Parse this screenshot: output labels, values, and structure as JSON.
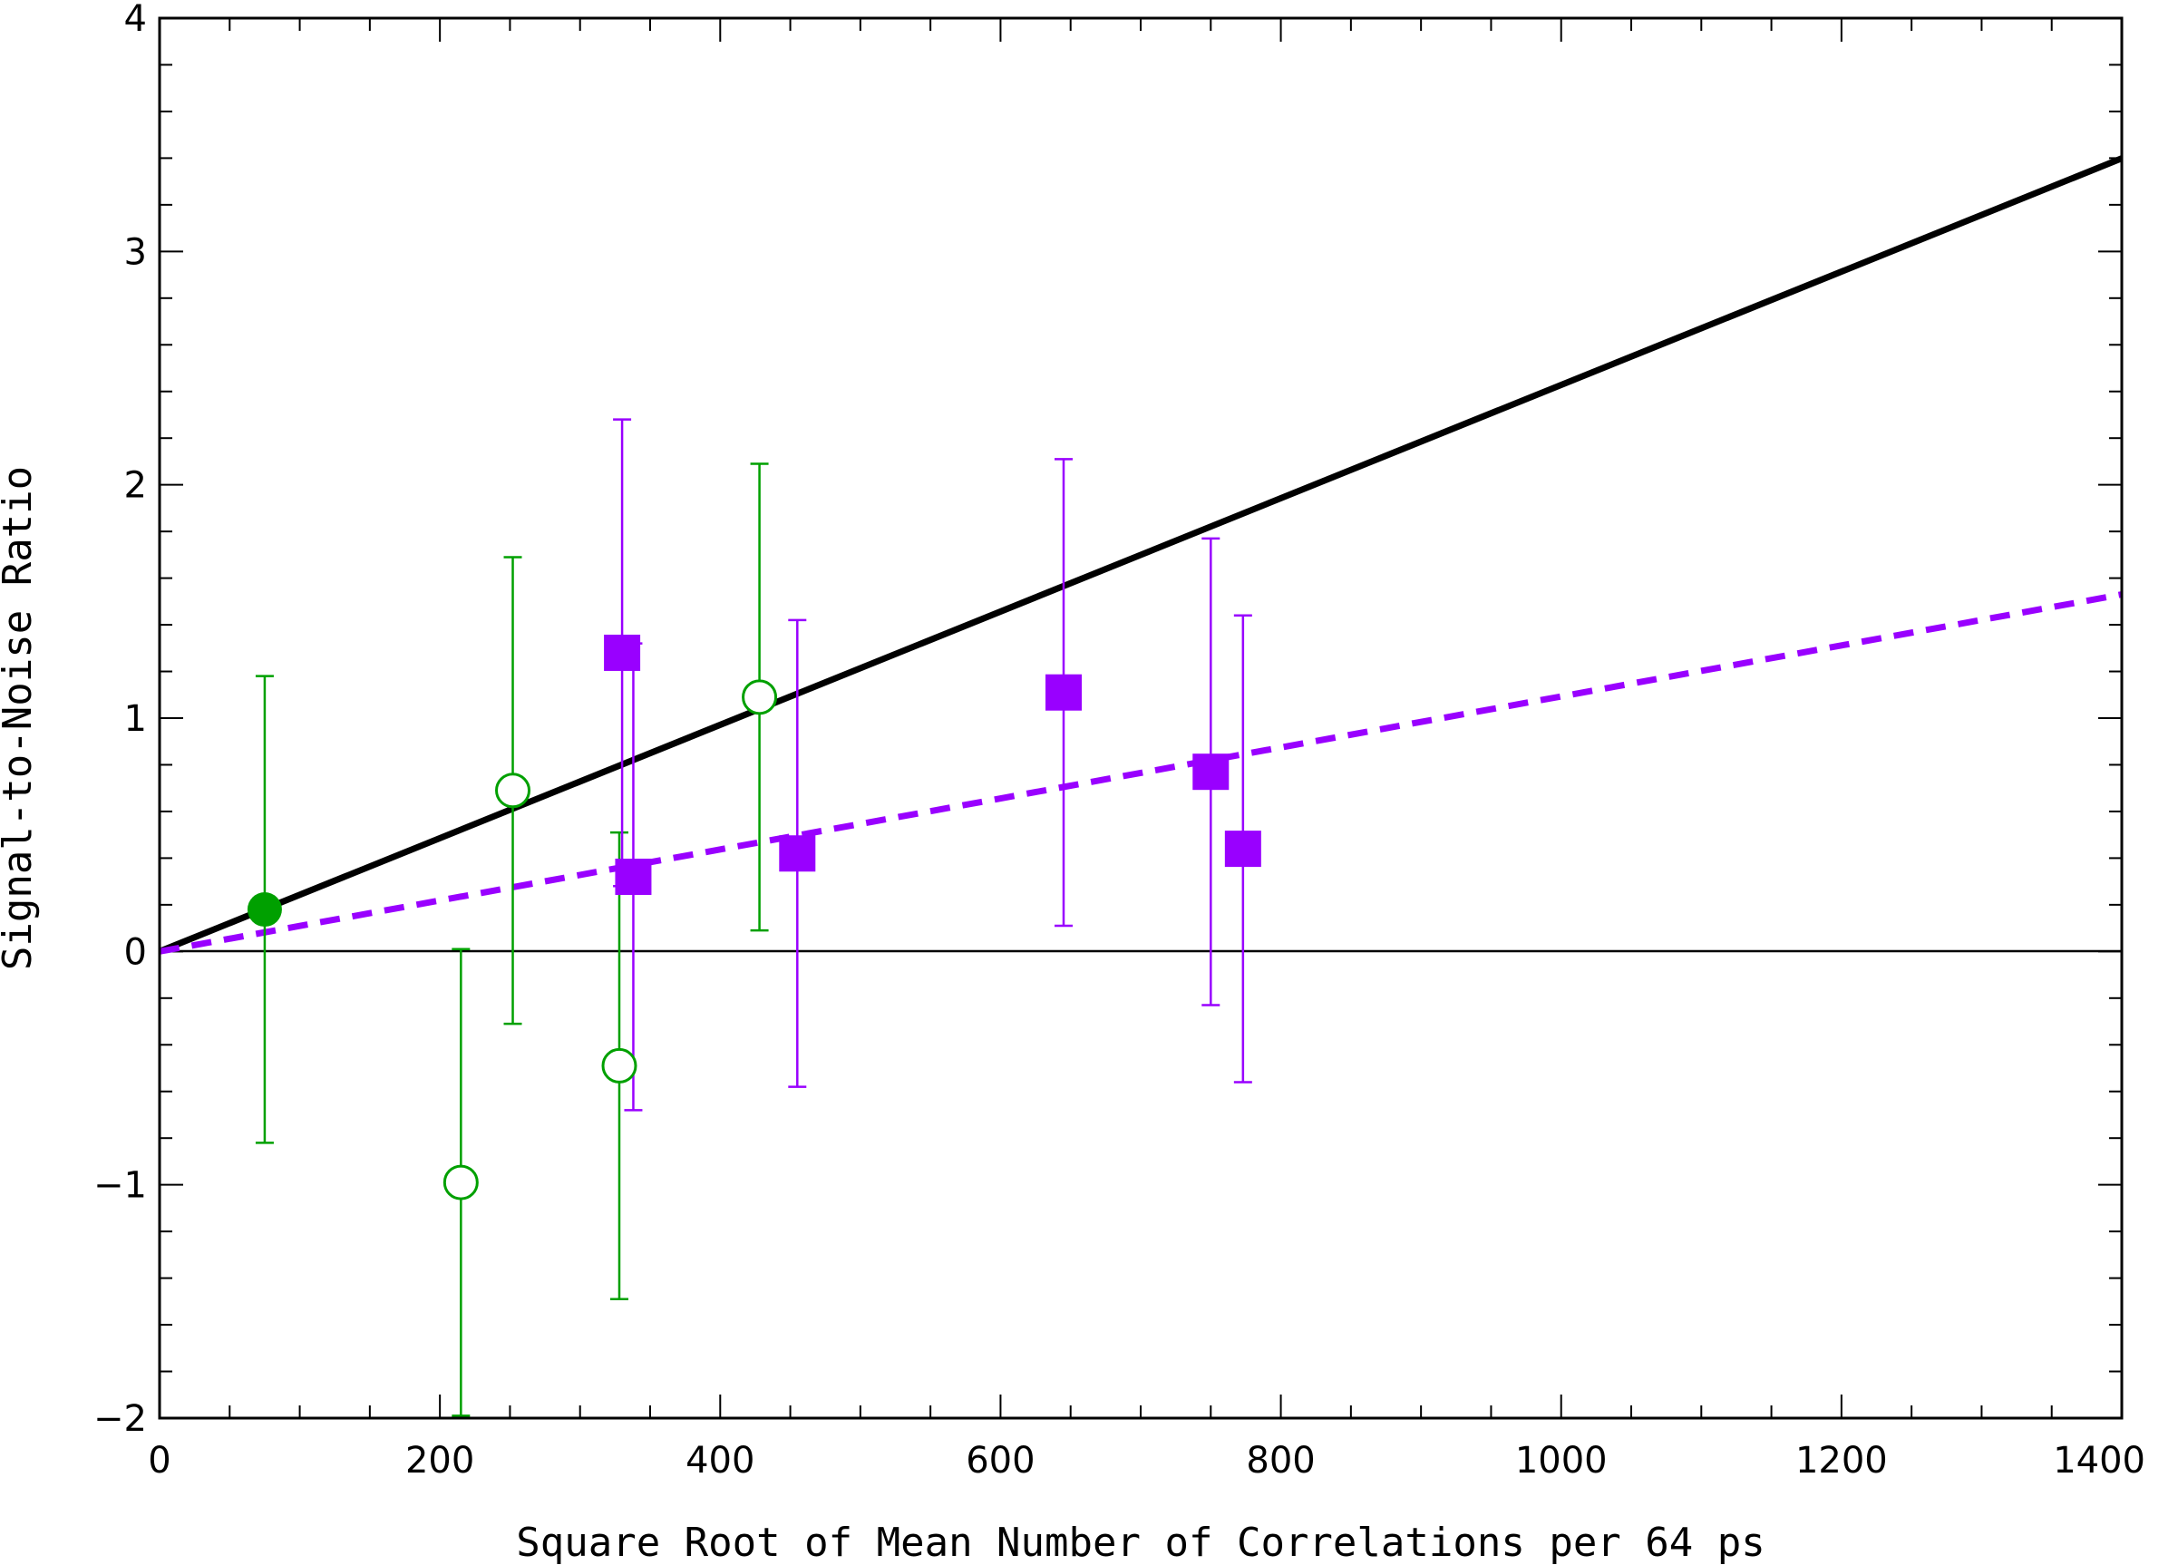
{
  "chart_data": {
    "type": "scatter",
    "xlabel": "Square Root of Mean Number of Correlations per 64 ps",
    "ylabel": "Signal-to-Noise Ratio",
    "xlim": [
      0,
      1400
    ],
    "ylim": [
      -2,
      4
    ],
    "x_ticks": [
      0,
      200,
      400,
      600,
      800,
      1000,
      1200,
      1400
    ],
    "x_tick_labels": [
      "0",
      "200",
      "400",
      "600",
      "800",
      "1000",
      "1200",
      "1400"
    ],
    "y_ticks": [
      -2,
      -1,
      0,
      1,
      2,
      3,
      4
    ],
    "y_tick_labels": [
      "−2",
      "−1",
      "0",
      "1",
      "2",
      "3",
      "4"
    ],
    "grid": false,
    "zero_line": 0,
    "series": [
      {
        "marker": "filled-circle",
        "color": "#00a000",
        "points": [
          {
            "x": 75,
            "y": 0.18,
            "err": 1.0
          }
        ]
      },
      {
        "marker": "open-circle",
        "color": "#00a000",
        "points": [
          {
            "x": 215,
            "y": -0.99,
            "err": 1.0
          },
          {
            "x": 252,
            "y": 0.69,
            "err": 1.0
          },
          {
            "x": 328,
            "y": -0.49,
            "err": 1.0
          },
          {
            "x": 428,
            "y": 1.09,
            "err": 1.0
          }
        ]
      },
      {
        "marker": "filled-square",
        "color": "#9900ff",
        "points": [
          {
            "x": 330,
            "y": 1.28,
            "err": 1.0
          },
          {
            "x": 338,
            "y": 0.32,
            "err": 1.0
          },
          {
            "x": 455,
            "y": 0.42,
            "err": 1.0
          },
          {
            "x": 645,
            "y": 1.11,
            "err": 1.0
          },
          {
            "x": 750,
            "y": 0.77,
            "err": 1.0
          },
          {
            "x": 773,
            "y": 0.44,
            "err": 1.0
          }
        ]
      }
    ],
    "fit_lines": [
      {
        "style": "solid",
        "color": "#000000",
        "slope": 0.002428,
        "intercept": 0
      },
      {
        "style": "dashed",
        "color": "#9900ff",
        "slope": 0.001093,
        "intercept": 0
      }
    ]
  }
}
